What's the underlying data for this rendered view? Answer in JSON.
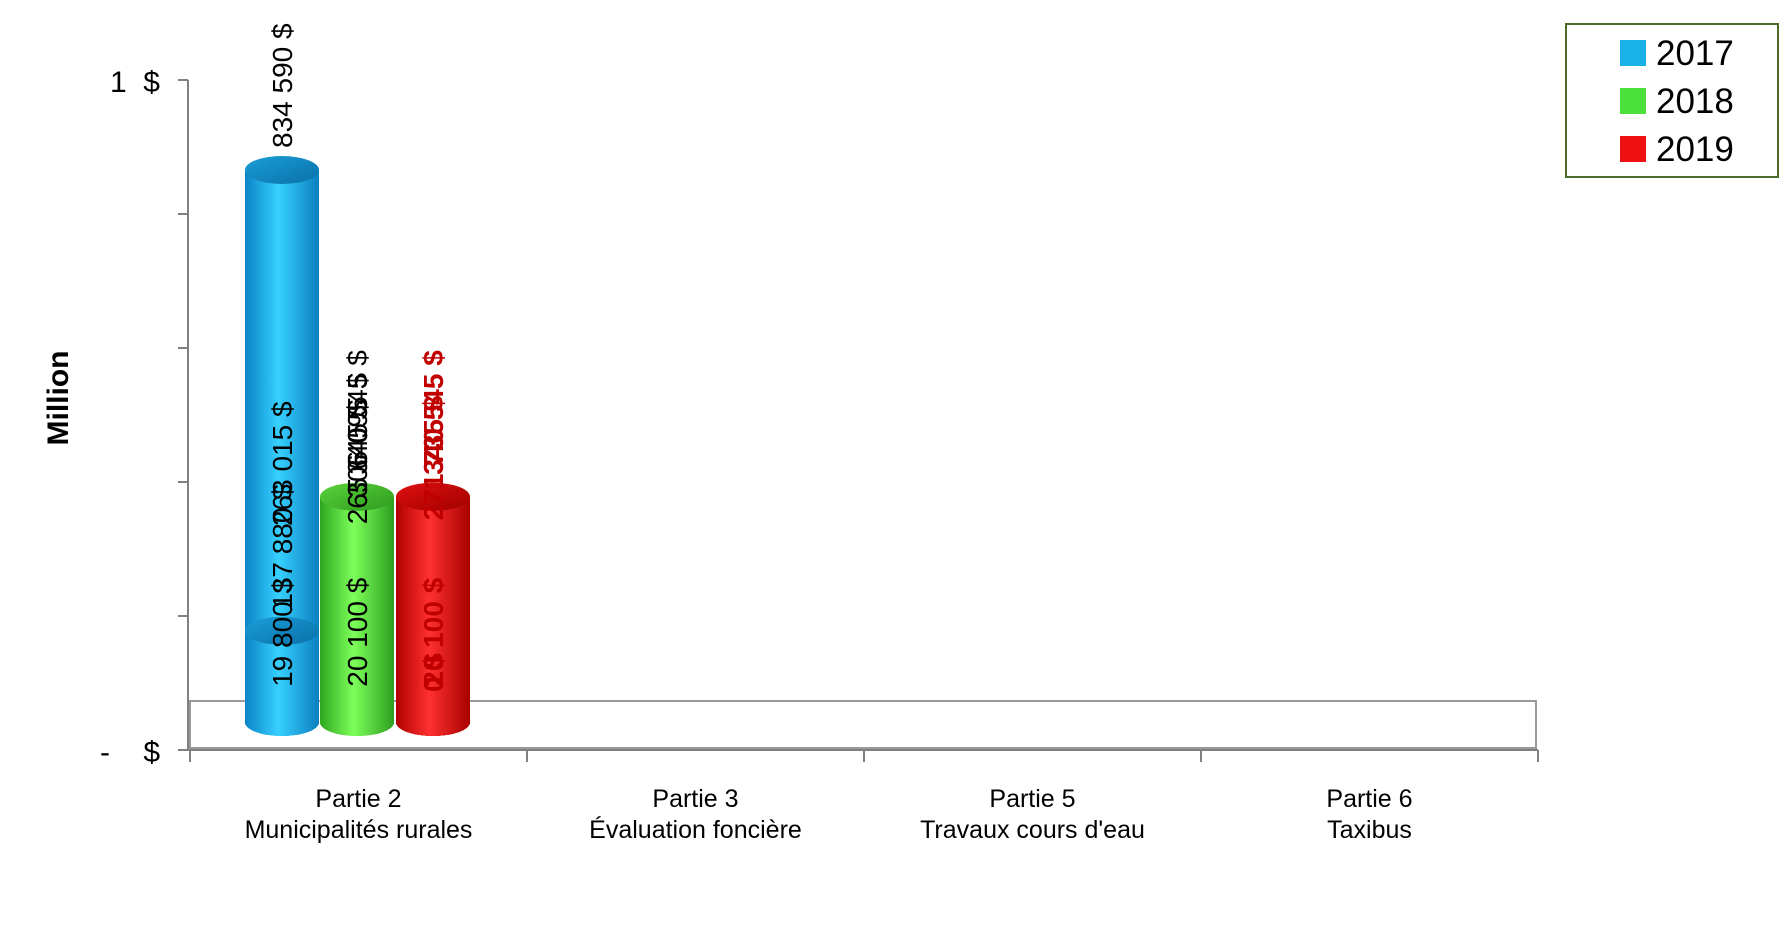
{
  "chart_data": {
    "type": "bar",
    "style": "3d-cylinder",
    "ylabel": "Million",
    "ytick_labels": [
      {
        "value": 1000000,
        "label": "1  $"
      },
      {
        "value": 0,
        "label": "-    $"
      }
    ],
    "ylim": [
      0,
      1000000
    ],
    "yticks": [
      0,
      200000,
      400000,
      600000,
      800000,
      1000000
    ],
    "categories": [
      {
        "line1": "Partie 2",
        "line2": "Municipalités rurales"
      },
      {
        "line1": "Partie 3",
        "line2": "Évaluation foncière"
      },
      {
        "line1": "Partie 5",
        "line2": "Travaux cours d'eau"
      },
      {
        "line1": "Partie 6",
        "line2": "Taxibus"
      }
    ],
    "series": [
      {
        "name": "2017",
        "color": "#1ab0e8",
        "values": [
          19800,
          263015,
          834590,
          137880
        ],
        "labels": [
          "19 800 $",
          "263 015 $",
          "834 590 $",
          "137 880 $"
        ]
      },
      {
        "name": "2018",
        "color": "#4be03a",
        "values": [
          20100,
          265645,
          306095,
          340545
        ],
        "labels": [
          "20 100 $",
          "265 645 $",
          "306 095 $",
          "340 545 $"
        ]
      },
      {
        "name": "2019",
        "color": "#ee1111",
        "values": [
          20100,
          271735,
          0,
          340545
        ],
        "labels": [
          "20 100 $",
          "271 735 $",
          "0 $",
          "340 545 $"
        ],
        "label_color": "#c00000",
        "label_bold": true
      }
    ],
    "legend": {
      "position": "top-right",
      "border_color": "#4a6b2a"
    },
    "grid": false
  }
}
